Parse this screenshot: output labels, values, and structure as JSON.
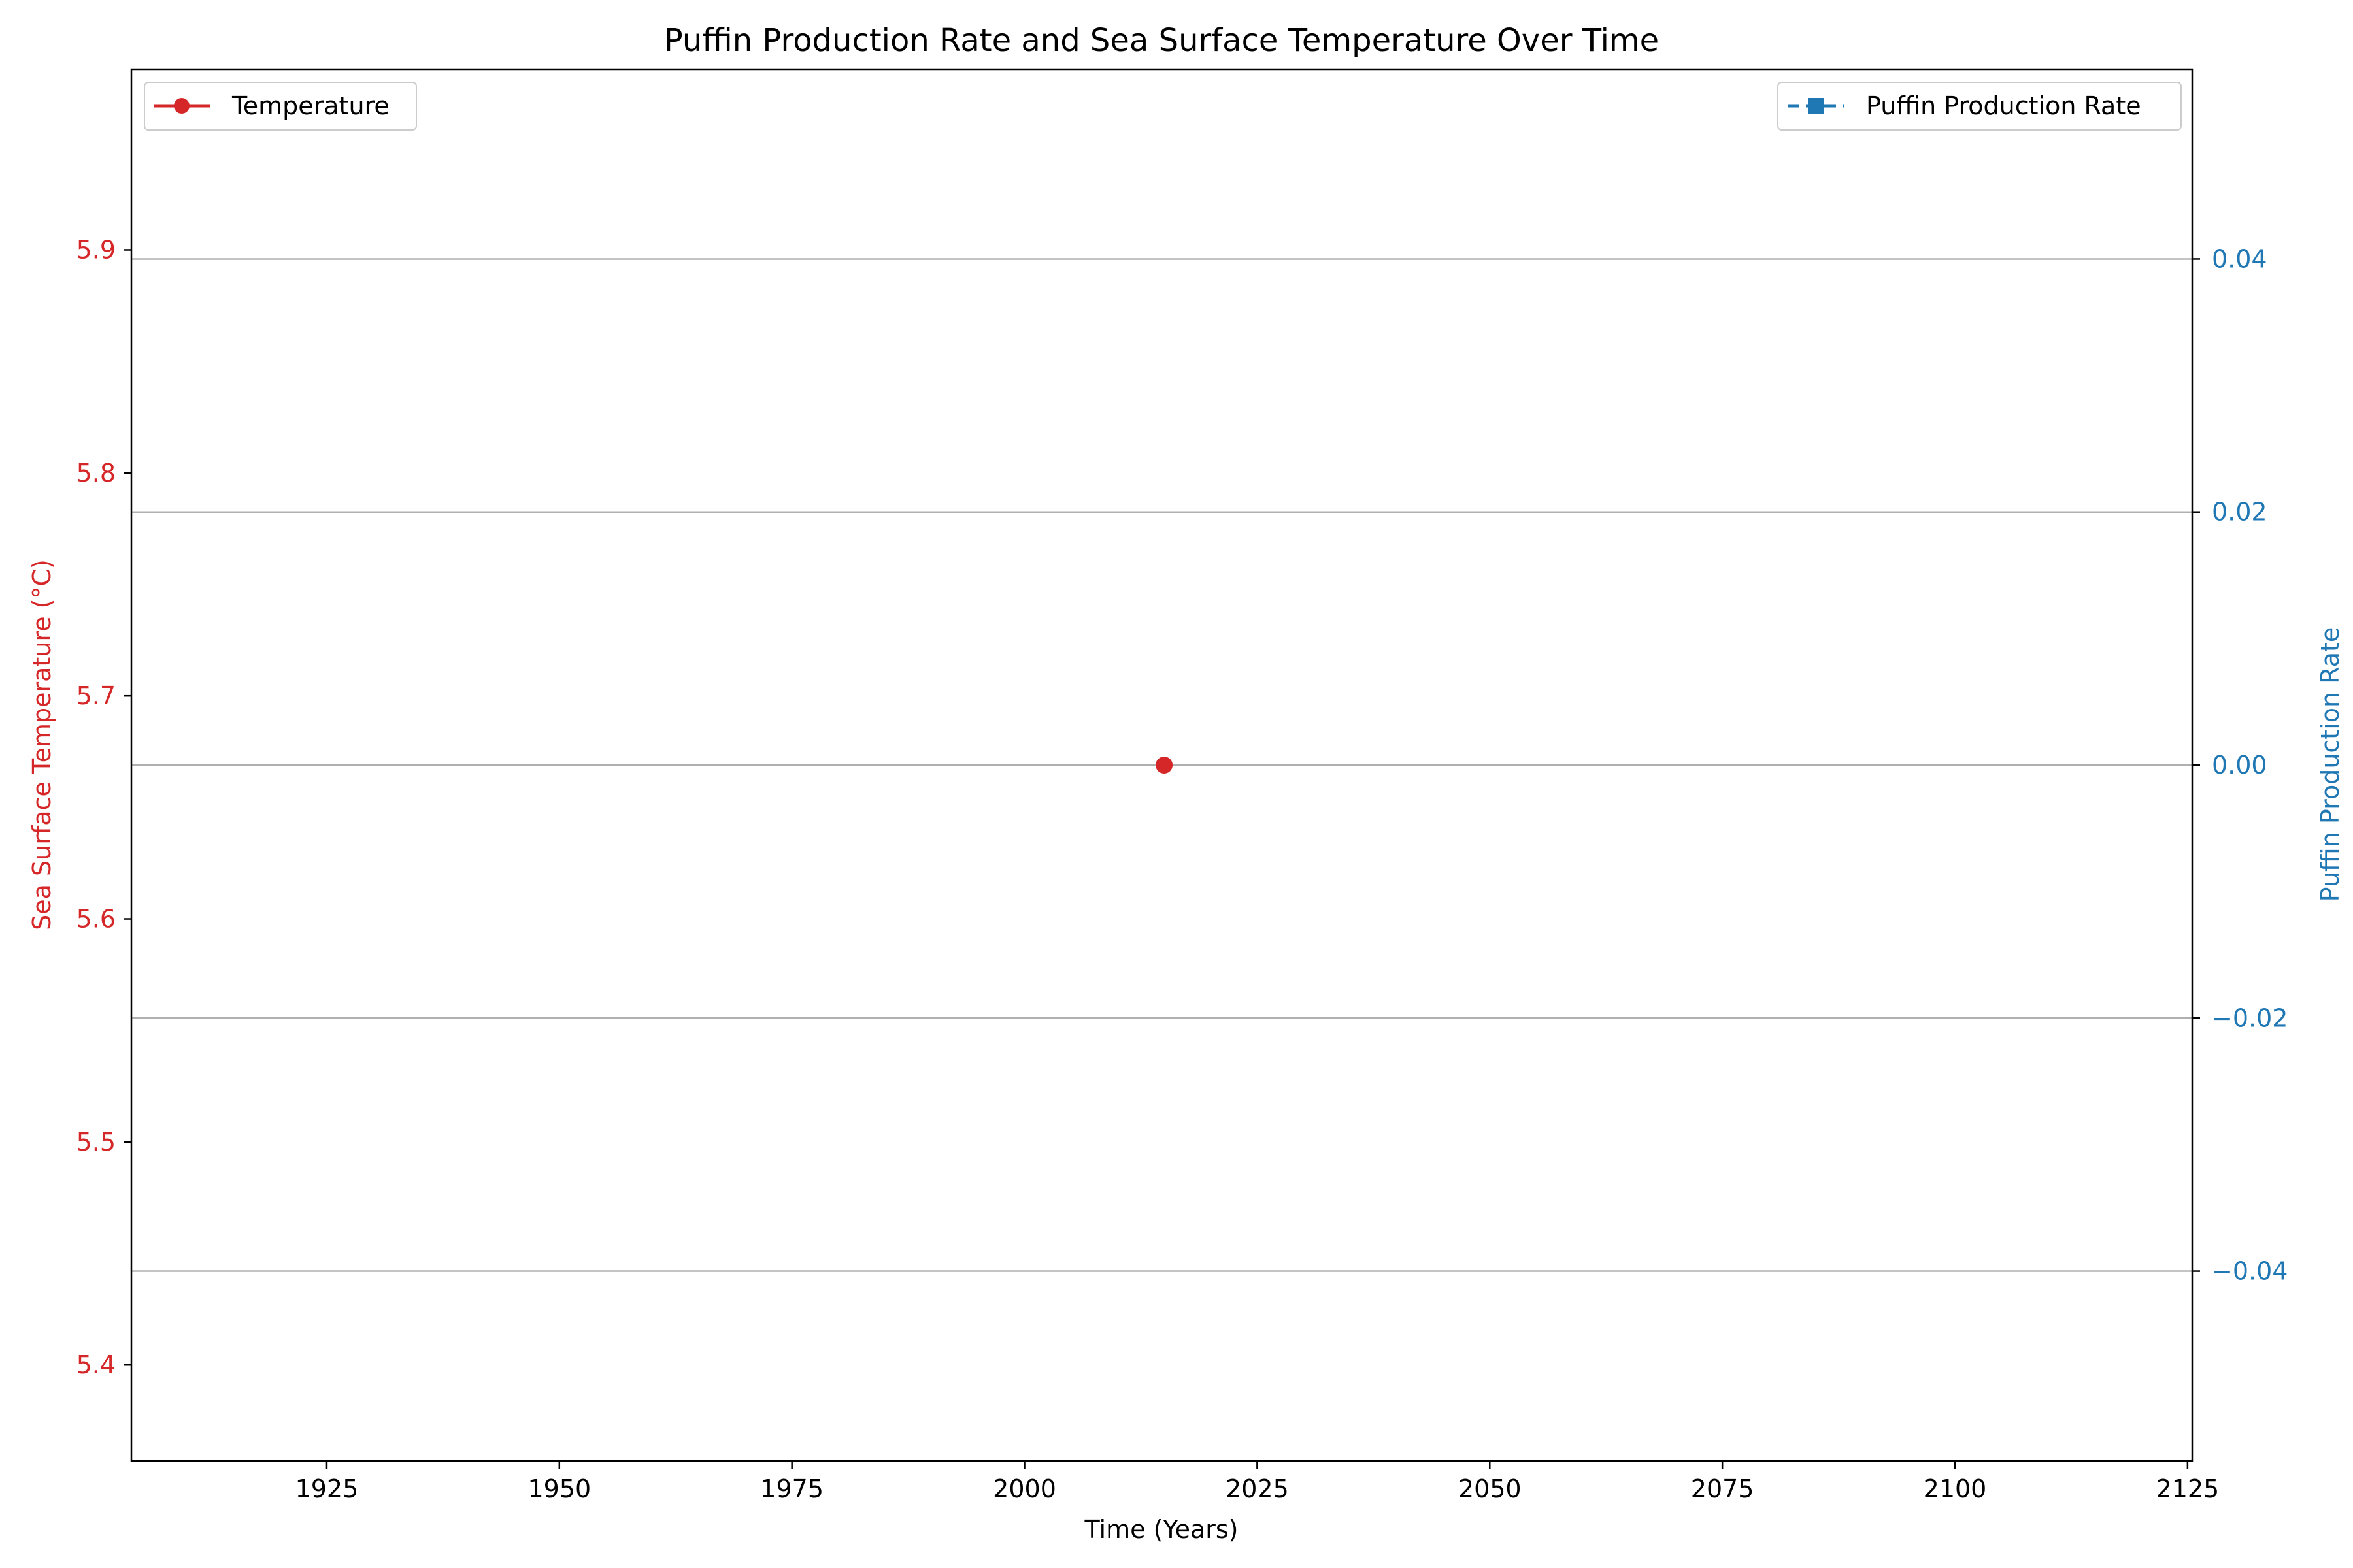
{
  "colors": {
    "temperature": "#d62728",
    "puffin": "#1f77b4",
    "grid": "#b0b0b0",
    "axis": "#000000",
    "background": "#ffffff"
  },
  "chart_data": {
    "type": "line",
    "title": "Puffin Production Rate and Sea Surface Temperature Over Time",
    "xlabel": "Time (Years)",
    "ylabel_left": "Sea Surface Temperature (°C)",
    "ylabel_right": "Puffin Production Rate",
    "xlim": [
      1904,
      2125.5
    ],
    "ylim_left": [
      5.357,
      5.981
    ],
    "ylim_right": [
      -0.055,
      0.055
    ],
    "x_ticks": [
      {
        "value": 1925,
        "label": "1925"
      },
      {
        "value": 1950,
        "label": "1950"
      },
      {
        "value": 1975,
        "label": "1975"
      },
      {
        "value": 2000,
        "label": "2000"
      },
      {
        "value": 2025,
        "label": "2025"
      },
      {
        "value": 2050,
        "label": "2050"
      },
      {
        "value": 2075,
        "label": "2075"
      },
      {
        "value": 2100,
        "label": "2100"
      },
      {
        "value": 2125,
        "label": "2125"
      }
    ],
    "y_left_ticks": [
      {
        "value": 5.4,
        "label": "5.4"
      },
      {
        "value": 5.5,
        "label": "5.5"
      },
      {
        "value": 5.6,
        "label": "5.6"
      },
      {
        "value": 5.7,
        "label": "5.7"
      },
      {
        "value": 5.8,
        "label": "5.8"
      },
      {
        "value": 5.9,
        "label": "5.9"
      }
    ],
    "y_right_ticks": [
      {
        "value": -0.04,
        "label": "−0.04"
      },
      {
        "value": -0.02,
        "label": "−0.02"
      },
      {
        "value": 0.0,
        "label": "0.00"
      },
      {
        "value": 0.02,
        "label": "0.02"
      },
      {
        "value": 0.04,
        "label": "0.04"
      }
    ],
    "grid": "horizontal-right-axis",
    "series": [
      {
        "name": "Temperature",
        "axis": "left",
        "marker": "circle",
        "line": "solid",
        "color": "#d62728",
        "points": [
          {
            "x": 2015,
            "y": 5.669
          }
        ]
      },
      {
        "name": "Puffin Production Rate",
        "axis": "right",
        "marker": "square",
        "line": "dashed",
        "color": "#1f77b4",
        "points": []
      }
    ],
    "legends": [
      {
        "placement": "top-left",
        "series": "Temperature"
      },
      {
        "placement": "top-right",
        "series": "Puffin Production Rate"
      }
    ]
  }
}
